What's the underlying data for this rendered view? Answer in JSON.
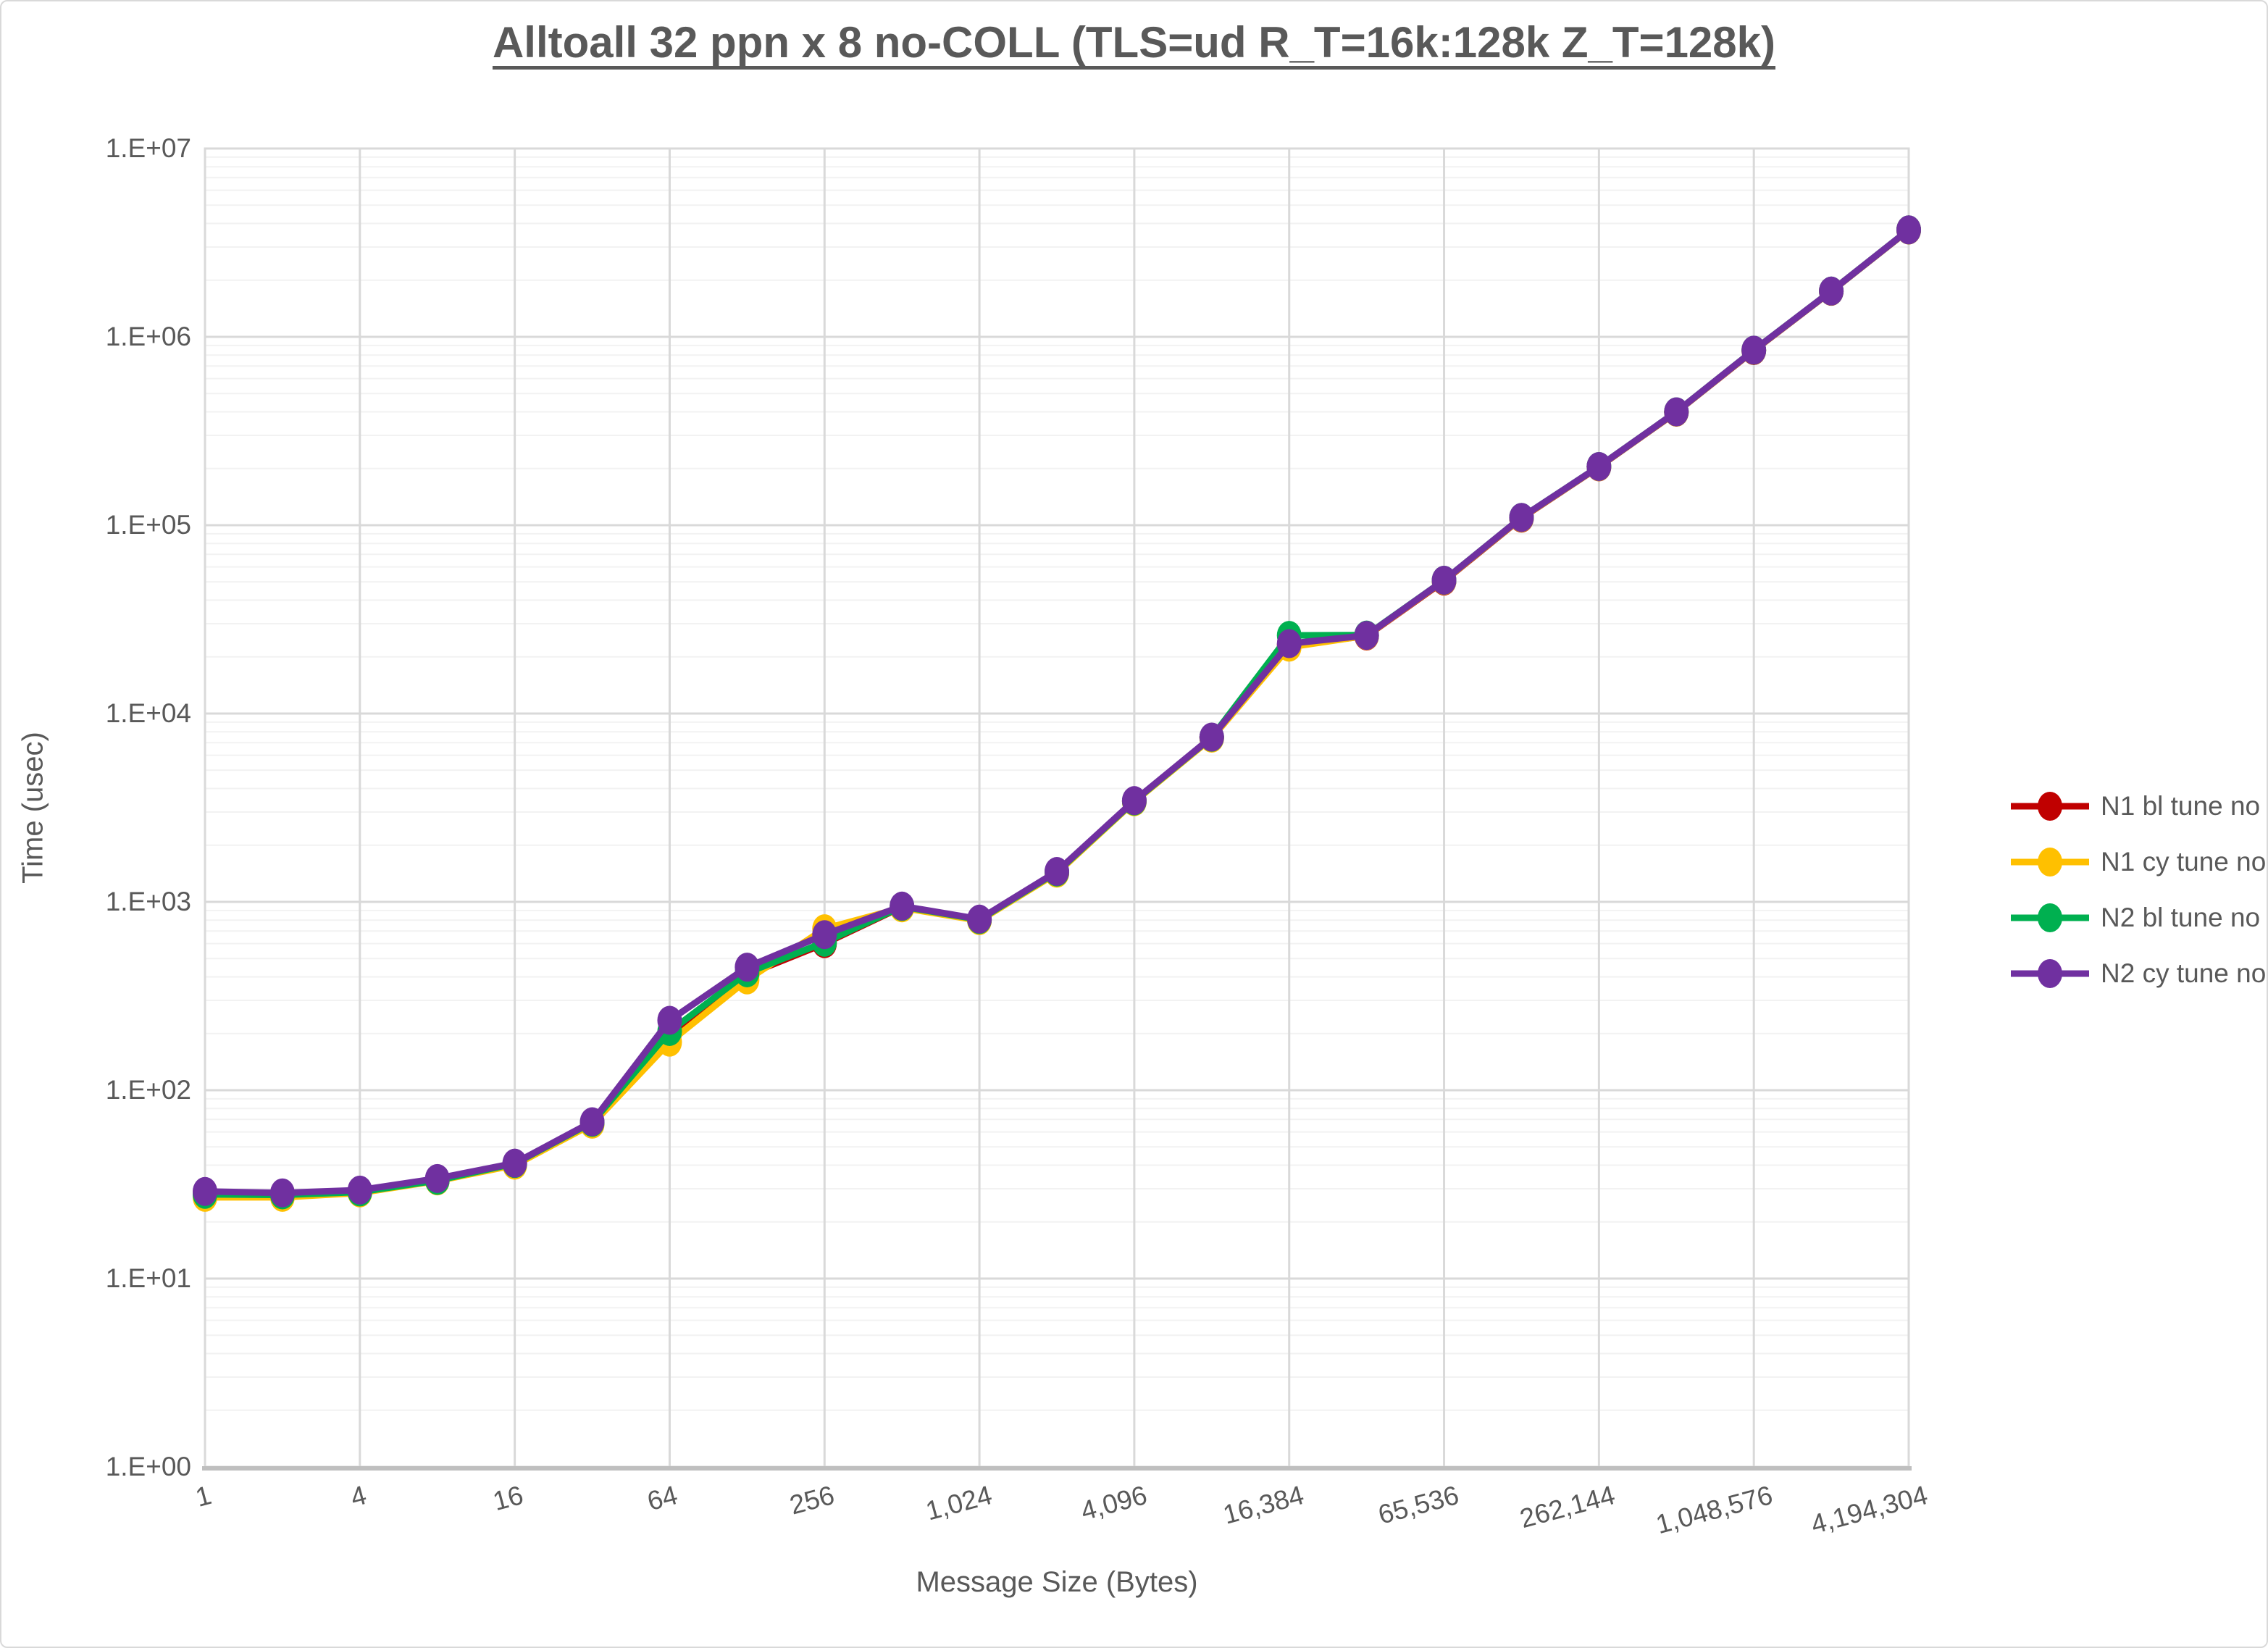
{
  "title": "Alltoall 32 ppn x 8 no-COLL (TLS=ud R_T=16k:128k Z_T=128k)",
  "axes": {
    "x_label": "Message Size (Bytes)",
    "y_label": "Time (usec)",
    "y_tick_labels": [
      "1.E+00",
      "1.E+01",
      "1.E+02",
      "1.E+03",
      "1.E+04",
      "1.E+05",
      "1.E+06",
      "1.E+07"
    ],
    "x_tick_labels": [
      "1",
      "4",
      "16",
      "64",
      "256",
      "1,024",
      "4,096",
      "16,384",
      "65,536",
      "262,144",
      "1,048,576",
      "4,194,304"
    ]
  },
  "colors": {
    "grid_major": "#d9d9d9",
    "grid_minor": "#f2f2f2",
    "axis_line": "#bfbfbf",
    "text": "#595959"
  },
  "chart_data": {
    "type": "line",
    "x_scale": "log2",
    "y_scale": "log10",
    "ylim": [
      1,
      10000000
    ],
    "grid": true,
    "legend_position": "right",
    "title": "Alltoall 32 ppn x 8 no-COLL (TLS=ud R_T=16k:128k Z_T=128k)",
    "xlabel": "Message Size (Bytes)",
    "ylabel": "Time (usec)",
    "x": [
      1,
      2,
      4,
      8,
      16,
      32,
      64,
      128,
      256,
      512,
      1024,
      2048,
      4096,
      8192,
      16384,
      32768,
      65536,
      131072,
      262144,
      524288,
      1048576,
      2097152,
      4194304
    ],
    "series": [
      {
        "name": "N1 bl tune no",
        "color": "#c00000",
        "values": [
          28.5,
          28,
          29,
          33.5,
          40.5,
          67,
          200,
          410,
          600,
          940,
          800,
          1430,
          3420,
          7450,
          23000,
          25800,
          50500,
          109000,
          204000,
          398000,
          845000,
          1745000,
          3690000
        ]
      },
      {
        "name": "N1 cy tune no",
        "color": "#ffc000",
        "values": [
          27,
          27,
          28.5,
          33,
          40,
          66,
          180,
          385,
          720,
          930,
          795,
          1420,
          3400,
          7400,
          22500,
          25900,
          50800,
          109500,
          204500,
          399000,
          848000,
          1748000,
          3695000
        ]
      },
      {
        "name": "N2 bl tune no",
        "color": "#00b050",
        "values": [
          28,
          27.8,
          28.8,
          33.2,
          40.8,
          67.5,
          205,
          420,
          610,
          945,
          805,
          1440,
          3430,
          7480,
          26000,
          26100,
          51000,
          110000,
          205000,
          400000,
          850000,
          1750000,
          3700000
        ]
      },
      {
        "name": "N2 cy tune no",
        "color": "#7030a0",
        "values": [
          29,
          28.5,
          29.5,
          34,
          41,
          68,
          235,
          450,
          670,
          950,
          810,
          1450,
          3450,
          7500,
          23500,
          26000,
          51000,
          110000,
          205000,
          400000,
          850000,
          1750000,
          3700000
        ]
      }
    ]
  }
}
